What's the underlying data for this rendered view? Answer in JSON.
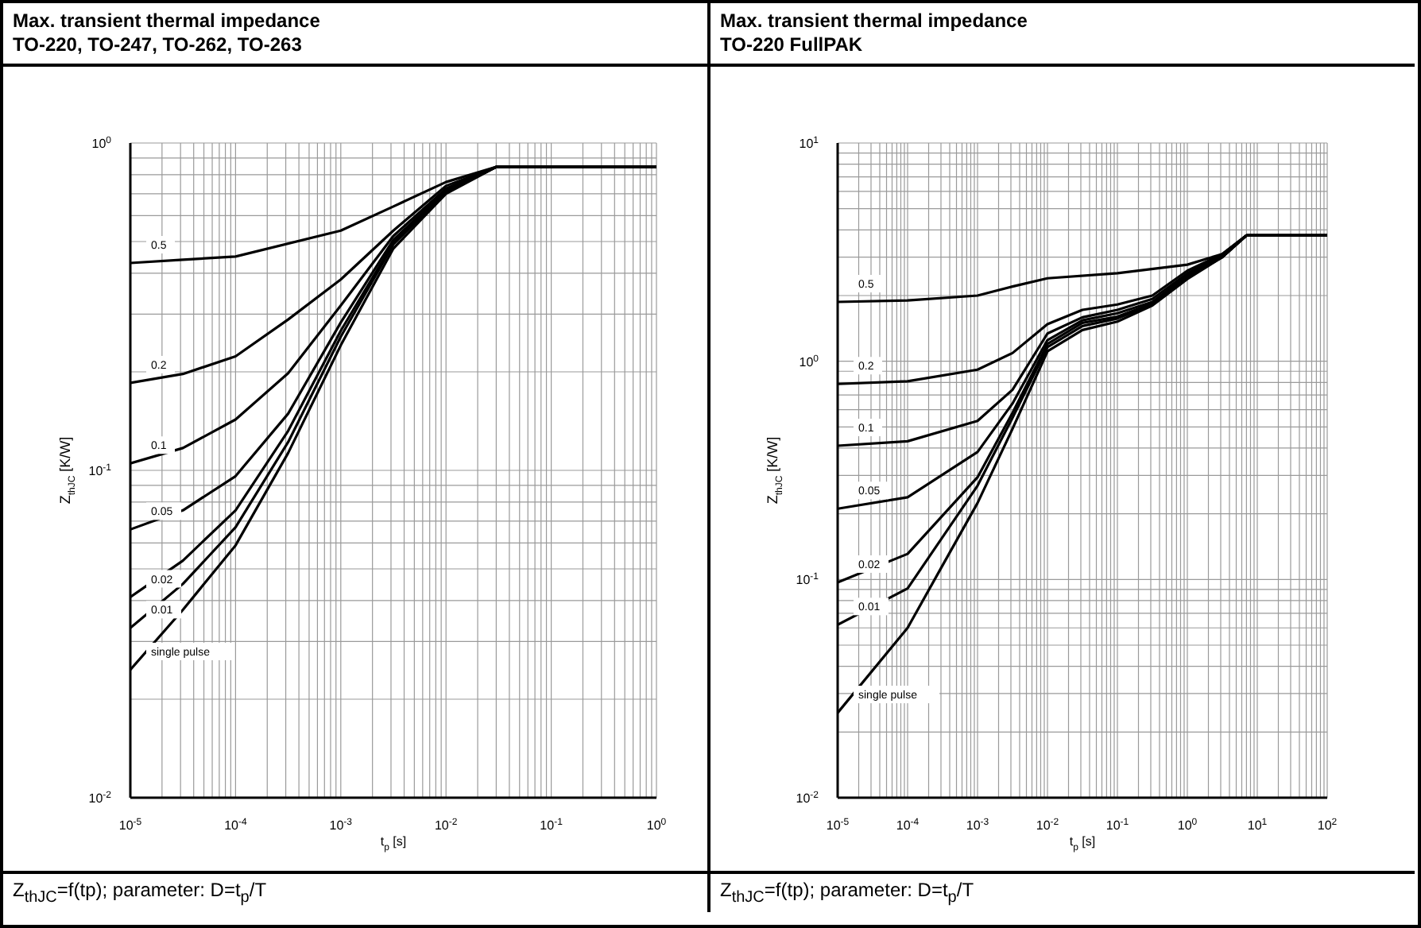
{
  "chart_data": [
    {
      "type": "line",
      "title": "Max. transient thermal impedance",
      "subtitle": "TO-220, TO-247, TO-262, TO-263",
      "xlabel": "t$_{p}$ [s]",
      "ylabel": "Z$_{thJC}$ [K/W]",
      "annotations": [
        "Z$_{thJC}$=f(tp); parameter: D=t$_{p}$/T"
      ],
      "log": "xy",
      "grid": true,
      "marker": "none",
      "line_style": "solid",
      "xlim": [
        1e-05,
        1
      ],
      "ylim": [
        0.01,
        1
      ],
      "xticks": [
        {
          "value": 1e-05,
          "label": "10$^{-5}$"
        },
        {
          "value": 2e-05,
          "label": null
        },
        {
          "value": 3e-05,
          "label": null
        },
        {
          "value": 4e-05,
          "label": null
        },
        {
          "value": 5e-05,
          "label": null
        },
        {
          "value": 6e-05,
          "label": null
        },
        {
          "value": 7e-05,
          "label": null
        },
        {
          "value": 8e-05,
          "label": null
        },
        {
          "value": 9e-05,
          "label": null
        },
        {
          "value": 0.0001,
          "label": "10$^{-4}$"
        },
        {
          "value": 0.0002,
          "label": null
        },
        {
          "value": 0.0003,
          "label": null
        },
        {
          "value": 0.0004,
          "label": null
        },
        {
          "value": 0.0005,
          "label": null
        },
        {
          "value": 0.0006,
          "label": null
        },
        {
          "value": 0.0007,
          "label": null
        },
        {
          "value": 0.0008,
          "label": null
        },
        {
          "value": 0.0009,
          "label": null
        },
        {
          "value": 0.001,
          "label": "10$^{-3}$"
        },
        {
          "value": 0.002,
          "label": null
        },
        {
          "value": 0.003,
          "label": null
        },
        {
          "value": 0.004,
          "label": null
        },
        {
          "value": 0.005,
          "label": null
        },
        {
          "value": 0.006,
          "label": null
        },
        {
          "value": 0.007,
          "label": null
        },
        {
          "value": 0.008,
          "label": null
        },
        {
          "value": 0.009,
          "label": null
        },
        {
          "value": 0.01,
          "label": "10$^{-2}$"
        },
        {
          "value": 0.02,
          "label": null
        },
        {
          "value": 0.03,
          "label": null
        },
        {
          "value": 0.04,
          "label": null
        },
        {
          "value": 0.05,
          "label": null
        },
        {
          "value": 0.06,
          "label": null
        },
        {
          "value": 0.07,
          "label": null
        },
        {
          "value": 0.08,
          "label": null
        },
        {
          "value": 0.09,
          "label": null
        },
        {
          "value": 0.1,
          "label": "10$^{-1}$"
        },
        {
          "value": 0.2,
          "label": null
        },
        {
          "value": 0.3,
          "label": null
        },
        {
          "value": 0.4,
          "label": null
        },
        {
          "value": 0.5,
          "label": null
        },
        {
          "value": 0.6,
          "label": null
        },
        {
          "value": 0.7,
          "label": null
        },
        {
          "value": 0.8,
          "label": null
        },
        {
          "value": 0.9,
          "label": null
        },
        {
          "value": 1,
          "label": "10$^{0}$"
        }
      ],
      "yticks": [
        {
          "value": 0.01,
          "label": "10$^{-2}$"
        },
        {
          "value": 0.02,
          "label": null
        },
        {
          "value": 0.03,
          "label": null
        },
        {
          "value": 0.04,
          "label": null
        },
        {
          "value": 0.05,
          "label": null
        },
        {
          "value": 0.06,
          "label": null
        },
        {
          "value": 0.07,
          "label": null
        },
        {
          "value": 0.08,
          "label": null
        },
        {
          "value": 0.09,
          "label": null
        },
        {
          "value": 0.1,
          "label": "10$^{-1}$"
        },
        {
          "value": 0.2,
          "label": null
        },
        {
          "value": 0.3,
          "label": null
        },
        {
          "value": 0.4,
          "label": null
        },
        {
          "value": 0.5,
          "label": null
        },
        {
          "value": 0.6,
          "label": null
        },
        {
          "value": 0.7,
          "label": null
        },
        {
          "value": 0.8,
          "label": null
        },
        {
          "value": 0.9,
          "label": null
        },
        {
          "value": 1,
          "label": "10$^{0}$"
        }
      ],
      "series": [
        {
          "name": "0.5",
          "color": "#000000",
          "x": [
            1e-05,
            3.16e-05,
            0.0001,
            0.001,
            0.00316,
            0.01,
            0.03,
            1
          ],
          "values": [
            0.43,
            0.44,
            0.45,
            0.54,
            0.64,
            0.76,
            0.845,
            0.845
          ]
        },
        {
          "name": "0.2",
          "color": "#000000",
          "x": [
            1e-05,
            3.16e-05,
            0.0001,
            0.000316,
            0.001,
            0.00316,
            0.01,
            0.03,
            1
          ],
          "values": [
            0.185,
            0.197,
            0.223,
            0.289,
            0.383,
            0.54,
            0.74,
            0.845,
            0.845
          ]
        },
        {
          "name": "0.1",
          "color": "#000000",
          "x": [
            1e-05,
            3.16e-05,
            0.0001,
            0.000316,
            0.001,
            0.00316,
            0.01,
            0.03,
            1
          ],
          "values": [
            0.105,
            0.117,
            0.143,
            0.198,
            0.319,
            0.52,
            0.726,
            0.845,
            0.845
          ]
        },
        {
          "name": "0.05",
          "color": "#000000",
          "x": [
            1e-05,
            3.16e-05,
            0.0001,
            0.000316,
            0.001,
            0.00316,
            0.01,
            0.03,
            1
          ],
          "values": [
            0.066,
            0.0755,
            0.096,
            0.149,
            0.283,
            0.506,
            0.717,
            0.845,
            0.845
          ]
        },
        {
          "name": "0.02",
          "color": "#000000",
          "x": [
            1e-05,
            3.16e-05,
            0.0001,
            0.000316,
            0.001,
            0.00316,
            0.01,
            0.03,
            1
          ],
          "values": [
            0.041,
            0.053,
            0.0755,
            0.132,
            0.267,
            0.496,
            0.71,
            0.845,
            0.845
          ]
        },
        {
          "name": "0.01",
          "color": "#000000",
          "x": [
            1e-05,
            3.16e-05,
            0.0001,
            0.000316,
            0.001,
            0.00316,
            0.01,
            0.03,
            1
          ],
          "values": [
            0.033,
            0.045,
            0.067,
            0.122,
            0.256,
            0.49,
            0.706,
            0.845,
            0.845
          ]
        },
        {
          "name": "single pulse",
          "color": "#000000",
          "x": [
            1e-05,
            3.16e-05,
            0.0001,
            0.000316,
            0.001,
            0.00316,
            0.01,
            0.03,
            1
          ],
          "values": [
            0.0246,
            0.0375,
            0.059,
            0.113,
            0.241,
            0.476,
            0.7,
            0.845,
            0.845
          ]
        }
      ]
    },
    {
      "type": "line",
      "title": "Max. transient thermal impedance",
      "subtitle": "TO-220 FullPAK",
      "xlabel": "t$_{p}$ [s]",
      "ylabel": "Z$_{thJC}$ [K/W]",
      "annotations": [
        "Z$_{thJC}$=f(tp); parameter: D=t$_{p}$/T"
      ],
      "log": "xy",
      "grid": true,
      "marker": "none",
      "line_style": "solid",
      "xlim": [
        1e-05,
        100
      ],
      "ylim": [
        0.01,
        10
      ],
      "xticks": [
        {
          "value": 1e-05,
          "label": "10$^{-5}$"
        },
        {
          "value": 2e-05,
          "label": null
        },
        {
          "value": 3e-05,
          "label": null
        },
        {
          "value": 4e-05,
          "label": null
        },
        {
          "value": 5e-05,
          "label": null
        },
        {
          "value": 6e-05,
          "label": null
        },
        {
          "value": 7e-05,
          "label": null
        },
        {
          "value": 8e-05,
          "label": null
        },
        {
          "value": 9e-05,
          "label": null
        },
        {
          "value": 0.0001,
          "label": "10$^{-4}$"
        },
        {
          "value": 0.0002,
          "label": null
        },
        {
          "value": 0.0003,
          "label": null
        },
        {
          "value": 0.0004,
          "label": null
        },
        {
          "value": 0.0005,
          "label": null
        },
        {
          "value": 0.0006,
          "label": null
        },
        {
          "value": 0.0007,
          "label": null
        },
        {
          "value": 0.0008,
          "label": null
        },
        {
          "value": 0.0009,
          "label": null
        },
        {
          "value": 0.001,
          "label": "10$^{-3}$"
        },
        {
          "value": 0.002,
          "label": null
        },
        {
          "value": 0.003,
          "label": null
        },
        {
          "value": 0.004,
          "label": null
        },
        {
          "value": 0.005,
          "label": null
        },
        {
          "value": 0.006,
          "label": null
        },
        {
          "value": 0.007,
          "label": null
        },
        {
          "value": 0.008,
          "label": null
        },
        {
          "value": 0.009,
          "label": null
        },
        {
          "value": 0.01,
          "label": "10$^{-2}$"
        },
        {
          "value": 0.02,
          "label": null
        },
        {
          "value": 0.03,
          "label": null
        },
        {
          "value": 0.04,
          "label": null
        },
        {
          "value": 0.05,
          "label": null
        },
        {
          "value": 0.06,
          "label": null
        },
        {
          "value": 0.07,
          "label": null
        },
        {
          "value": 0.08,
          "label": null
        },
        {
          "value": 0.09,
          "label": null
        },
        {
          "value": 0.1,
          "label": "10$^{-1}$"
        },
        {
          "value": 0.2,
          "label": null
        },
        {
          "value": 0.3,
          "label": null
        },
        {
          "value": 0.4,
          "label": null
        },
        {
          "value": 0.5,
          "label": null
        },
        {
          "value": 0.6,
          "label": null
        },
        {
          "value": 0.7,
          "label": null
        },
        {
          "value": 0.8,
          "label": null
        },
        {
          "value": 0.9,
          "label": null
        },
        {
          "value": 1,
          "label": "10$^{0}$"
        },
        {
          "value": 2,
          "label": null
        },
        {
          "value": 3,
          "label": null
        },
        {
          "value": 4,
          "label": null
        },
        {
          "value": 5,
          "label": null
        },
        {
          "value": 6,
          "label": null
        },
        {
          "value": 7,
          "label": null
        },
        {
          "value": 8,
          "label": null
        },
        {
          "value": 9,
          "label": null
        },
        {
          "value": 10,
          "label": "10$^{1}$"
        },
        {
          "value": 20,
          "label": null
        },
        {
          "value": 30,
          "label": null
        },
        {
          "value": 40,
          "label": null
        },
        {
          "value": 50,
          "label": null
        },
        {
          "value": 60,
          "label": null
        },
        {
          "value": 70,
          "label": null
        },
        {
          "value": 80,
          "label": null
        },
        {
          "value": 90,
          "label": null
        },
        {
          "value": 100,
          "label": "10$^{2}$"
        }
      ],
      "yticks": [
        {
          "value": 0.01,
          "label": "10$^{-2}$"
        },
        {
          "value": 0.02,
          "label": null
        },
        {
          "value": 0.03,
          "label": null
        },
        {
          "value": 0.04,
          "label": null
        },
        {
          "value": 0.05,
          "label": null
        },
        {
          "value": 0.06,
          "label": null
        },
        {
          "value": 0.07,
          "label": null
        },
        {
          "value": 0.08,
          "label": null
        },
        {
          "value": 0.09,
          "label": null
        },
        {
          "value": 0.1,
          "label": "10$^{-1}$"
        },
        {
          "value": 0.2,
          "label": null
        },
        {
          "value": 0.3,
          "label": null
        },
        {
          "value": 0.4,
          "label": null
        },
        {
          "value": 0.5,
          "label": null
        },
        {
          "value": 0.6,
          "label": null
        },
        {
          "value": 0.7,
          "label": null
        },
        {
          "value": 0.8,
          "label": null
        },
        {
          "value": 0.9,
          "label": null
        },
        {
          "value": 1,
          "label": "10$^{0}$"
        },
        {
          "value": 2,
          "label": null
        },
        {
          "value": 3,
          "label": null
        },
        {
          "value": 4,
          "label": null
        },
        {
          "value": 5,
          "label": null
        },
        {
          "value": 6,
          "label": null
        },
        {
          "value": 7,
          "label": null
        },
        {
          "value": 8,
          "label": null
        },
        {
          "value": 9,
          "label": null
        },
        {
          "value": 10,
          "label": "10$^{1}$"
        }
      ],
      "series": [
        {
          "name": "0.5",
          "color": "#000000",
          "x": [
            1e-05,
            0.0001,
            0.001,
            0.00316,
            0.01,
            0.1,
            1,
            3.16,
            7,
            100
          ],
          "values": [
            1.87,
            1.9,
            2.0,
            2.2,
            2.4,
            2.53,
            2.77,
            3.1,
            3.77,
            3.77
          ]
        },
        {
          "name": "0.2",
          "color": "#000000",
          "x": [
            1e-05,
            0.0001,
            0.001,
            0.00316,
            0.01,
            0.0316,
            0.1,
            0.316,
            1,
            3.16,
            7,
            100
          ],
          "values": [
            0.787,
            0.81,
            0.915,
            1.09,
            1.48,
            1.72,
            1.82,
            2.0,
            2.6,
            3.1,
            3.77,
            3.77
          ]
        },
        {
          "name": "0.1",
          "color": "#000000",
          "x": [
            1e-05,
            0.0001,
            0.001,
            0.00316,
            0.01,
            0.0316,
            0.1,
            0.316,
            1,
            3.16,
            7,
            100
          ],
          "values": [
            0.41,
            0.43,
            0.533,
            0.74,
            1.34,
            1.59,
            1.72,
            1.93,
            2.53,
            3.05,
            3.77,
            3.77
          ]
        },
        {
          "name": "0.05",
          "color": "#000000",
          "x": [
            1e-05,
            0.0001,
            0.001,
            0.00316,
            0.01,
            0.0316,
            0.1,
            0.316,
            1,
            3.16,
            7,
            100
          ],
          "values": [
            0.211,
            0.238,
            0.384,
            0.64,
            1.25,
            1.54,
            1.66,
            1.87,
            2.48,
            3.0,
            3.77,
            3.77
          ]
        },
        {
          "name": "0.02",
          "color": "#000000",
          "x": [
            1e-05,
            0.0001,
            0.001,
            0.00316,
            0.01,
            0.0316,
            0.1,
            0.316,
            1,
            3.16,
            7,
            100
          ],
          "values": [
            0.097,
            0.131,
            0.294,
            0.58,
            1.2,
            1.5,
            1.6,
            1.84,
            2.45,
            3.0,
            3.77,
            3.77
          ]
        },
        {
          "name": "0.01",
          "color": "#000000",
          "x": [
            1e-05,
            0.0001,
            0.001,
            0.00316,
            0.01,
            0.0316,
            0.1,
            0.316,
            1,
            3.16,
            7,
            100
          ],
          "values": [
            0.062,
            0.091,
            0.269,
            0.55,
            1.16,
            1.45,
            1.57,
            1.82,
            2.42,
            3.0,
            3.77,
            3.77
          ]
        },
        {
          "name": "single pulse",
          "color": "#000000",
          "x": [
            1e-05,
            0.0001,
            0.000316,
            0.001,
            0.00316,
            0.01,
            0.0316,
            0.1,
            0.316,
            1,
            3.16,
            7,
            100
          ],
          "values": [
            0.0245,
            0.06,
            0.116,
            0.224,
            0.49,
            1.11,
            1.39,
            1.52,
            1.8,
            2.38,
            3.0,
            3.77,
            3.77
          ]
        }
      ]
    }
  ]
}
